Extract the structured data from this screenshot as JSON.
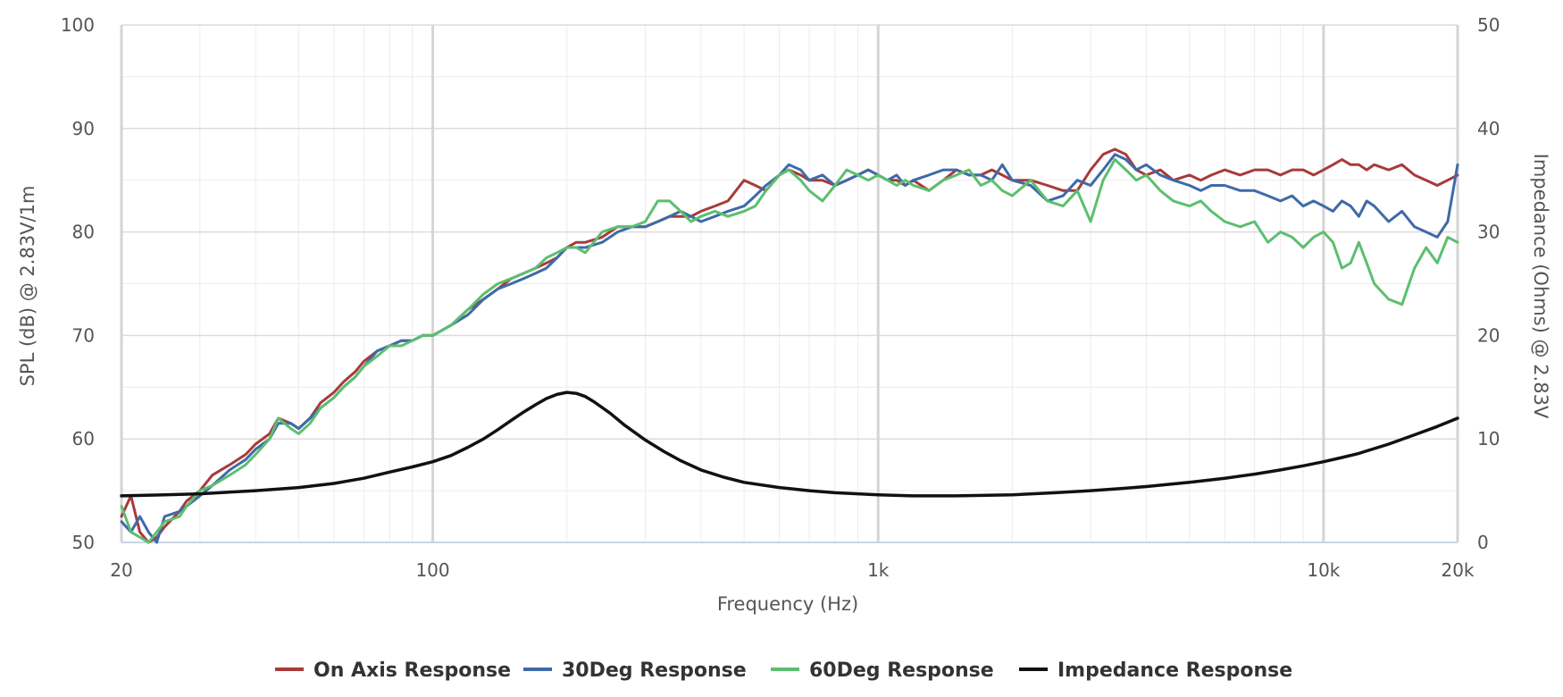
{
  "chart_data": {
    "type": "line",
    "xlabel": "Frequency (Hz)",
    "ylabel_left": "SPL (dB) @ 2.83V/1m",
    "ylabel_right": "Impedance (Ohms) @ 2.83V",
    "x_scale": "log",
    "xlim": [
      20,
      20000
    ],
    "ylim_left": [
      50,
      100
    ],
    "ylim_right": [
      0,
      50
    ],
    "x_ticks": [
      20,
      100,
      1000,
      10000,
      20000
    ],
    "x_tick_labels": [
      "20",
      "100",
      "1k",
      "10k",
      "20k"
    ],
    "y_left_ticks": [
      50,
      60,
      70,
      80,
      90,
      100
    ],
    "y_left_tick_labels": [
      "50",
      "60",
      "70",
      "80",
      "90",
      "100"
    ],
    "y_right_ticks": [
      0,
      10,
      20,
      30,
      40,
      50
    ],
    "y_right_tick_labels": [
      "0",
      "10",
      "20",
      "30",
      "40",
      "50"
    ],
    "grid": true,
    "legend_position": "bottom-center",
    "series": [
      {
        "name": "On Axis Response",
        "axis": "left",
        "color": "#a83a3a",
        "x": [
          20,
          21,
          22,
          23,
          24,
          25,
          27,
          28,
          30,
          32,
          35,
          38,
          40,
          43,
          45,
          48,
          50,
          53,
          56,
          60,
          63,
          67,
          70,
          75,
          80,
          85,
          90,
          95,
          100,
          110,
          120,
          130,
          140,
          150,
          160,
          170,
          180,
          190,
          200,
          210,
          220,
          240,
          260,
          280,
          300,
          320,
          340,
          360,
          380,
          400,
          430,
          460,
          500,
          530,
          560,
          600,
          630,
          670,
          700,
          750,
          800,
          850,
          900,
          950,
          1000,
          1050,
          1100,
          1150,
          1200,
          1300,
          1400,
          1500,
          1600,
          1700,
          1800,
          1900,
          2000,
          2200,
          2400,
          2600,
          2800,
          3000,
          3200,
          3400,
          3600,
          3800,
          4000,
          4300,
          4600,
          5000,
          5300,
          5600,
          6000,
          6500,
          7000,
          7500,
          8000,
          8500,
          9000,
          9500,
          10000,
          10500,
          11000,
          11500,
          12000,
          12500,
          13000,
          14000,
          15000,
          16000,
          17000,
          18000,
          19000,
          20000
        ],
        "values": [
          52.5,
          54.5,
          51.0,
          50.0,
          50.5,
          51.5,
          53.0,
          54.0,
          55.0,
          56.5,
          57.5,
          58.5,
          59.5,
          60.5,
          62.0,
          61.5,
          61.0,
          62.0,
          63.5,
          64.5,
          65.5,
          66.5,
          67.5,
          68.5,
          69.0,
          69.5,
          69.5,
          70.0,
          70.0,
          71.0,
          72.5,
          73.5,
          74.5,
          75.5,
          76.0,
          76.5,
          77.0,
          77.5,
          78.5,
          79.0,
          79.0,
          79.5,
          80.5,
          80.5,
          80.5,
          81.0,
          81.5,
          81.5,
          81.5,
          82.0,
          82.5,
          83.0,
          85.0,
          84.5,
          84.0,
          85.5,
          86.0,
          85.5,
          85.0,
          85.0,
          84.5,
          85.0,
          85.5,
          86.0,
          85.5,
          85.0,
          85.0,
          84.5,
          85.0,
          84.0,
          85.0,
          86.0,
          85.5,
          85.5,
          86.0,
          85.5,
          85.0,
          85.0,
          84.5,
          84.0,
          84.0,
          86.0,
          87.5,
          88.0,
          87.5,
          86.0,
          85.5,
          86.0,
          85.0,
          85.5,
          85.0,
          85.5,
          86.0,
          85.5,
          86.0,
          86.0,
          85.5,
          86.0,
          86.0,
          85.5,
          86.0,
          86.5,
          87.0,
          86.5,
          86.5,
          86.0,
          86.5,
          86.0,
          86.5,
          85.5,
          85.0,
          84.5,
          85.0,
          85.5
        ]
      },
      {
        "name": "30Deg Response",
        "axis": "left",
        "color": "#3e6aa8",
        "x": [
          20,
          21,
          22,
          23,
          24,
          25,
          27,
          28,
          30,
          32,
          35,
          38,
          40,
          43,
          45,
          48,
          50,
          53,
          56,
          60,
          63,
          67,
          70,
          75,
          80,
          85,
          90,
          95,
          100,
          110,
          120,
          130,
          140,
          150,
          160,
          170,
          180,
          190,
          200,
          210,
          220,
          240,
          260,
          280,
          300,
          320,
          340,
          360,
          380,
          400,
          430,
          460,
          500,
          530,
          560,
          600,
          630,
          670,
          700,
          750,
          800,
          850,
          900,
          950,
          1000,
          1050,
          1100,
          1150,
          1200,
          1300,
          1400,
          1500,
          1600,
          1700,
          1800,
          1900,
          2000,
          2200,
          2400,
          2600,
          2800,
          3000,
          3200,
          3400,
          3600,
          3800,
          4000,
          4300,
          4600,
          5000,
          5300,
          5600,
          6000,
          6500,
          7000,
          7500,
          8000,
          8500,
          9000,
          9500,
          10000,
          10500,
          11000,
          11500,
          12000,
          12500,
          13000,
          14000,
          15000,
          16000,
          17000,
          18000,
          19000,
          20000
        ],
        "values": [
          52.0,
          51.0,
          52.5,
          51.0,
          50.0,
          52.5,
          53.0,
          53.5,
          54.5,
          55.5,
          57.0,
          58.0,
          59.0,
          60.0,
          61.5,
          61.5,
          61.0,
          62.0,
          63.0,
          64.0,
          65.0,
          66.0,
          67.0,
          68.5,
          69.0,
          69.5,
          69.5,
          70.0,
          70.0,
          71.0,
          72.0,
          73.5,
          74.5,
          75.0,
          75.5,
          76.0,
          76.5,
          77.5,
          78.5,
          78.5,
          78.5,
          79.0,
          80.0,
          80.5,
          80.5,
          81.0,
          81.5,
          82.0,
          81.5,
          81.0,
          81.5,
          82.0,
          82.5,
          83.5,
          84.5,
          85.5,
          86.5,
          86.0,
          85.0,
          85.5,
          84.5,
          85.0,
          85.5,
          86.0,
          85.5,
          85.0,
          85.5,
          84.5,
          85.0,
          85.5,
          86.0,
          86.0,
          85.5,
          85.5,
          85.0,
          86.5,
          85.0,
          84.5,
          83.0,
          83.5,
          85.0,
          84.5,
          86.0,
          87.5,
          87.0,
          86.0,
          86.5,
          85.5,
          85.0,
          84.5,
          84.0,
          84.5,
          84.5,
          84.0,
          84.0,
          83.5,
          83.0,
          83.5,
          82.5,
          83.0,
          82.5,
          82.0,
          83.0,
          82.5,
          81.5,
          83.0,
          82.5,
          81.0,
          82.0,
          80.5,
          80.0,
          79.5,
          81.0,
          86.5
        ]
      },
      {
        "name": "60Deg Response",
        "axis": "left",
        "color": "#5cbf6f",
        "x": [
          20,
          21,
          22,
          23,
          24,
          25,
          27,
          28,
          30,
          32,
          35,
          38,
          40,
          43,
          45,
          48,
          50,
          53,
          56,
          60,
          63,
          67,
          70,
          75,
          80,
          85,
          90,
          95,
          100,
          110,
          120,
          130,
          140,
          150,
          160,
          170,
          180,
          190,
          200,
          210,
          220,
          240,
          260,
          280,
          300,
          320,
          340,
          360,
          380,
          400,
          430,
          460,
          500,
          530,
          560,
          600,
          630,
          670,
          700,
          750,
          800,
          850,
          900,
          950,
          1000,
          1050,
          1100,
          1150,
          1200,
          1300,
          1400,
          1500,
          1600,
          1700,
          1800,
          1900,
          2000,
          2200,
          2400,
          2600,
          2800,
          3000,
          3200,
          3400,
          3600,
          3800,
          4000,
          4300,
          4600,
          5000,
          5300,
          5600,
          6000,
          6500,
          7000,
          7500,
          8000,
          8500,
          9000,
          9500,
          10000,
          10500,
          11000,
          11500,
          12000,
          12500,
          13000,
          14000,
          15000,
          16000,
          17000,
          18000,
          19000,
          20000
        ],
        "values": [
          53.5,
          51.0,
          50.5,
          50.0,
          51.0,
          52.0,
          52.5,
          53.5,
          55.0,
          55.5,
          56.5,
          57.5,
          58.5,
          60.0,
          62.0,
          61.0,
          60.5,
          61.5,
          63.0,
          64.0,
          65.0,
          66.0,
          67.0,
          68.0,
          69.0,
          69.0,
          69.5,
          70.0,
          70.0,
          71.0,
          72.5,
          74.0,
          75.0,
          75.5,
          76.0,
          76.5,
          77.5,
          78.0,
          78.5,
          78.5,
          78.0,
          80.0,
          80.5,
          80.5,
          81.0,
          83.0,
          83.0,
          82.0,
          81.0,
          81.5,
          82.0,
          81.5,
          82.0,
          82.5,
          84.0,
          85.5,
          86.0,
          85.0,
          84.0,
          83.0,
          84.5,
          86.0,
          85.5,
          85.0,
          85.5,
          85.0,
          84.5,
          85.0,
          84.5,
          84.0,
          85.0,
          85.5,
          86.0,
          84.5,
          85.0,
          84.0,
          83.5,
          85.0,
          83.0,
          82.5,
          84.0,
          81.0,
          85.0,
          87.0,
          86.0,
          85.0,
          85.5,
          84.0,
          83.0,
          82.5,
          83.0,
          82.0,
          81.0,
          80.5,
          81.0,
          79.0,
          80.0,
          79.5,
          78.5,
          79.5,
          80.0,
          79.0,
          76.5,
          77.0,
          79.0,
          77.0,
          75.0,
          73.5,
          73.0,
          76.5,
          78.5,
          77.0,
          79.5,
          79.0
        ]
      },
      {
        "name": "Impedance Response",
        "axis": "right",
        "color": "#111111",
        "x": [
          20,
          25,
          30,
          40,
          50,
          60,
          70,
          80,
          90,
          100,
          110,
          120,
          130,
          140,
          150,
          160,
          170,
          180,
          190,
          200,
          210,
          220,
          230,
          250,
          270,
          300,
          330,
          360,
          400,
          450,
          500,
          600,
          700,
          800,
          900,
          1000,
          1200,
          1500,
          2000,
          2500,
          3000,
          3500,
          4000,
          5000,
          6000,
          7000,
          8000,
          9000,
          10000,
          11000,
          12000,
          14000,
          16000,
          18000,
          20000
        ],
        "values": [
          4.5,
          4.6,
          4.7,
          5.0,
          5.3,
          5.7,
          6.2,
          6.8,
          7.3,
          7.8,
          8.4,
          9.2,
          10.0,
          10.9,
          11.8,
          12.6,
          13.3,
          13.9,
          14.3,
          14.5,
          14.4,
          14.1,
          13.6,
          12.5,
          11.3,
          9.9,
          8.8,
          7.9,
          7.0,
          6.3,
          5.8,
          5.3,
          5.0,
          4.8,
          4.7,
          4.6,
          4.5,
          4.5,
          4.6,
          4.8,
          5.0,
          5.2,
          5.4,
          5.8,
          6.2,
          6.6,
          7.0,
          7.4,
          7.8,
          8.2,
          8.6,
          9.5,
          10.4,
          11.2,
          12.0
        ]
      }
    ]
  }
}
